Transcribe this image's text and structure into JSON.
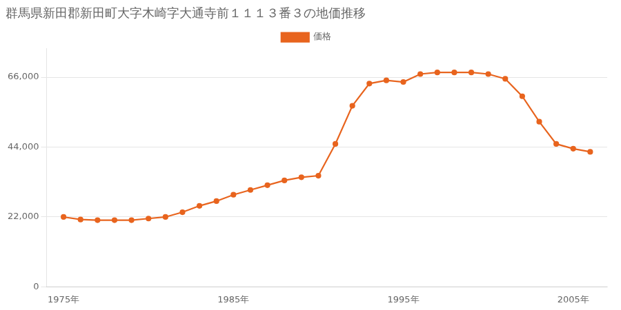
{
  "chart_data": {
    "type": "line",
    "title": "群馬県新田郡新田町大字木崎字大通寺前１１１３番３の地価推移",
    "series": [
      {
        "name": "価格",
        "color": "#e8641e",
        "marker": "circle",
        "values": [
          22000,
          21200,
          21000,
          21000,
          21000,
          21500,
          22000,
          23500,
          25500,
          27000,
          29000,
          30500,
          32000,
          33500,
          34500,
          35000,
          45000,
          57000,
          64000,
          65000,
          64500,
          67000,
          67500,
          67500,
          67500,
          67000,
          65500,
          60000,
          52000,
          45000,
          43500,
          42500
        ]
      }
    ],
    "x": [
      1975,
      1976,
      1977,
      1978,
      1979,
      1980,
      1981,
      1982,
      1983,
      1984,
      1985,
      1986,
      1987,
      1988,
      1989,
      1990,
      1991,
      1992,
      1993,
      1994,
      1995,
      1996,
      1997,
      1998,
      1999,
      2000,
      2001,
      2002,
      2003,
      2004,
      2005,
      2006
    ],
    "xlim": [
      1974,
      2007
    ],
    "xticks": [
      {
        "value": 1975,
        "label": "1975年"
      },
      {
        "value": 1985,
        "label": "1985年"
      },
      {
        "value": 1995,
        "label": "1995年"
      },
      {
        "value": 2005,
        "label": "2005年"
      }
    ],
    "ylim": [
      0,
      75000
    ],
    "yticks": [
      0,
      {
        "value": 22000,
        "label": "22,000"
      },
      {
        "value": 44000,
        "label": "44,000"
      },
      {
        "value": 66000,
        "label": "66,000"
      }
    ],
    "grid": "y",
    "legend": "top"
  }
}
